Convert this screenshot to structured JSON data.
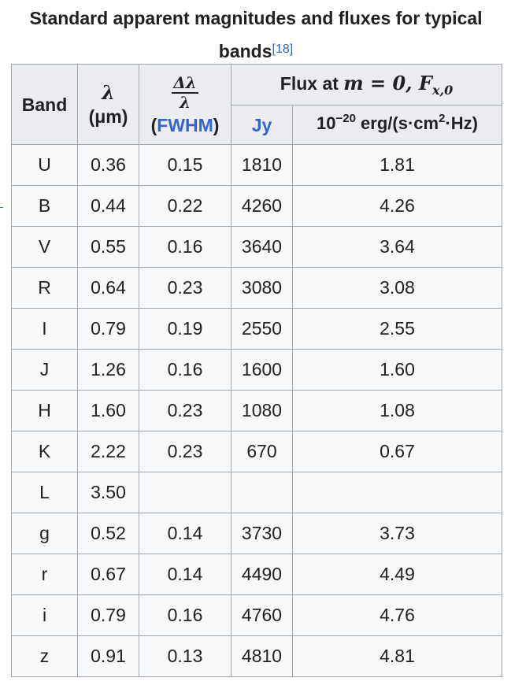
{
  "caption": {
    "text": "Standard apparent magnitudes and fluxes for typical bands",
    "ref": "[18]"
  },
  "headers": {
    "band": "Band",
    "lambda_symbol": "λ",
    "lambda_unit": "(μm)",
    "delta_numerator": "Δλ",
    "delta_denominator": "λ",
    "fwhm_open": "(",
    "fwhm_link": "FWHM",
    "fwhm_close": ")",
    "flux_prefix": "Flux at ",
    "flux_math": "m = 0, F",
    "flux_sub": "x,0",
    "jy": "Jy",
    "cgs_base": "10",
    "cgs_exp": "−20",
    "cgs_mid": " erg/(s·cm",
    "cgs_exp2": "2",
    "cgs_end": "·Hz)"
  },
  "rows": [
    {
      "band": "U",
      "lambda": "0.36",
      "dl": "0.15",
      "jy": "1810",
      "cgs": "1.81"
    },
    {
      "band": "B",
      "lambda": "0.44",
      "dl": "0.22",
      "jy": "4260",
      "cgs": "4.26"
    },
    {
      "band": "V",
      "lambda": "0.55",
      "dl": "0.16",
      "jy": "3640",
      "cgs": "3.64"
    },
    {
      "band": "R",
      "lambda": "0.64",
      "dl": "0.23",
      "jy": "3080",
      "cgs": "3.08"
    },
    {
      "band": "I",
      "lambda": "0.79",
      "dl": "0.19",
      "jy": "2550",
      "cgs": "2.55"
    },
    {
      "band": "J",
      "lambda": "1.26",
      "dl": "0.16",
      "jy": "1600",
      "cgs": "1.60"
    },
    {
      "band": "H",
      "lambda": "1.60",
      "dl": "0.23",
      "jy": "1080",
      "cgs": "1.08"
    },
    {
      "band": "K",
      "lambda": "2.22",
      "dl": "0.23",
      "jy": "670",
      "cgs": "0.67"
    },
    {
      "band": "L",
      "lambda": "3.50",
      "dl": "",
      "jy": "",
      "cgs": ""
    },
    {
      "band": "g",
      "lambda": "0.52",
      "dl": "0.14",
      "jy": "3730",
      "cgs": "3.73"
    },
    {
      "band": "r",
      "lambda": "0.67",
      "dl": "0.14",
      "jy": "4490",
      "cgs": "4.49"
    },
    {
      "band": "i",
      "lambda": "0.79",
      "dl": "0.16",
      "jy": "4760",
      "cgs": "4.76"
    },
    {
      "band": "z",
      "lambda": "0.91",
      "dl": "0.13",
      "jy": "4810",
      "cgs": "4.81"
    }
  ],
  "colors": {
    "header_bg": "#eaecf0",
    "cell_bg": "#f8f9fa",
    "border": "#a2a9b1",
    "link": "#3366cc",
    "text": "#202122"
  }
}
